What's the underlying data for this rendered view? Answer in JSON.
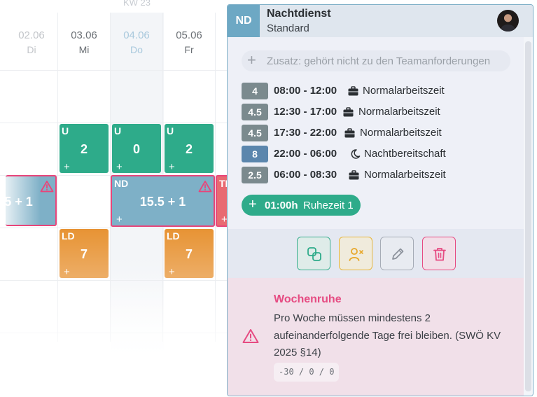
{
  "calendar": {
    "week_label": "KW 23",
    "days": [
      {
        "date": "02.06",
        "name": "Di"
      },
      {
        "date": "03.06",
        "name": "Mi"
      },
      {
        "date": "04.06",
        "name": "Do"
      },
      {
        "date": "05.06",
        "name": "Fr"
      }
    ],
    "shifts": {
      "u_mi": {
        "code": "U",
        "value": "2"
      },
      "u_do": {
        "code": "U",
        "value": "0"
      },
      "u_fr": {
        "code": "U",
        "value": "2"
      },
      "left_partial": {
        "value": "5 + 1"
      },
      "nd_do": {
        "code": "ND",
        "value": "15.5 + 1"
      },
      "tl_sa": {
        "code": "TL"
      },
      "ld_mi": {
        "code": "LD",
        "value": "7"
      },
      "ld_fr": {
        "code": "LD",
        "value": "7"
      },
      "plus": "+"
    }
  },
  "panel": {
    "badge": "ND",
    "title": "Nachtdienst",
    "subtitle": "Standard",
    "addon_placeholder": "Zusatz: gehört nicht zu den Teamanforderungen",
    "segments": [
      {
        "hours": "4",
        "time": "08:00 - 12:00",
        "type": "Normalarbeitszeit",
        "icon": "briefcase-icon"
      },
      {
        "hours": "4.5",
        "time": "12:30 - 17:00",
        "type": "Normalarbeitszeit",
        "icon": "briefcase-icon"
      },
      {
        "hours": "4.5",
        "time": "17:30 - 22:00",
        "type": "Normalarbeitszeit",
        "icon": "briefcase-icon"
      },
      {
        "hours": "8",
        "time": "22:00 - 06:00",
        "type": "Nachtbereitschaft",
        "icon": "moon-icon"
      },
      {
        "hours": "2.5",
        "time": "06:00 - 08:30",
        "type": "Normalarbeitszeit",
        "icon": "briefcase-icon"
      }
    ],
    "rest": {
      "plus": "+",
      "time": "01:00h",
      "label": "Ruhezeit 1"
    },
    "warning": {
      "title": "Wochenruhe",
      "text": "Pro Woche müssen mindestens 2 aufeinanderfolgende Tage frei bleiben. (SWÖ KV 2025 §14)",
      "code": "-30 / 0 / 0"
    }
  },
  "colors": {
    "green": "#2eab8a",
    "orange": "#e79334",
    "night_blue": "#7eb0c7",
    "alert_pink": "#e64b82",
    "badge_grey": "#7b8a8e",
    "badge_night": "#5b86ad"
  }
}
